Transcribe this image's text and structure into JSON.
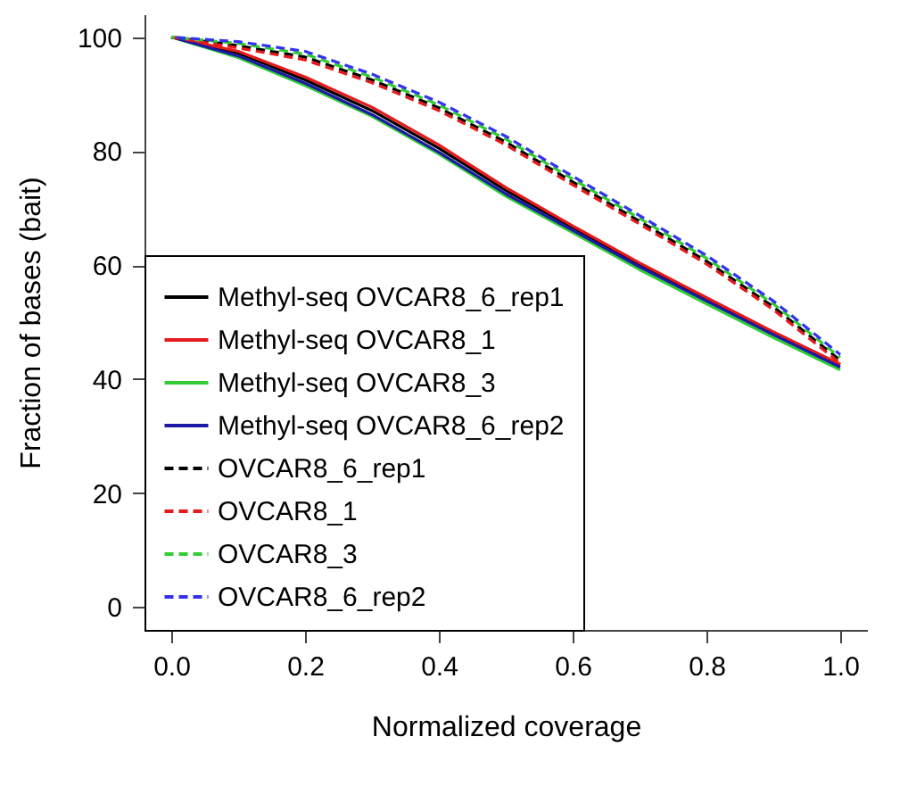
{
  "chart_data": {
    "type": "line",
    "xlabel": "Normalized coverage",
    "ylabel": "Fraction of bases (bait)",
    "x": [
      0,
      0.1,
      0.2,
      0.3,
      0.4,
      0.5,
      0.6,
      0.7,
      0.8,
      0.9,
      1.0
    ],
    "series": [
      {
        "name": "Methyl-seq OVCAR8_6_rep1",
        "color": "#000000",
        "line_style": "solid",
        "values": [
          100,
          97.2,
          92.5,
          87.1,
          80.5,
          73.1,
          66.6,
          60.1,
          54.1,
          48.2,
          42.5
        ]
      },
      {
        "name": "Methyl-seq OVCAR8_1",
        "color": "#e41a1c",
        "line_style": "solid",
        "values": [
          100,
          97.5,
          93,
          87.7,
          81.1,
          73.6,
          66.9,
          60.4,
          54.3,
          48.3,
          42.6
        ]
      },
      {
        "name": "Methyl-seq OVCAR8_3",
        "color": "#33cc33",
        "line_style": "solid",
        "values": [
          100,
          96.4,
          91.5,
          86.1,
          79.5,
          72.1,
          65.7,
          59.2,
          53.2,
          47.3,
          41.6
        ]
      },
      {
        "name": "Methyl-seq OVCAR8_6_rep2",
        "color": "#1a1aa6",
        "line_style": "solid",
        "values": [
          100,
          96.7,
          91.9,
          86.4,
          79.8,
          72.5,
          66.1,
          59.7,
          53.7,
          47.8,
          42.1
        ]
      },
      {
        "name": "OVCAR8_6_rep1",
        "color": "#000000",
        "line_style": "dashed",
        "values": [
          100,
          98.5,
          96.5,
          92.5,
          87.6,
          81.6,
          74.6,
          67.7,
          60.7,
          52.7,
          43.3
        ]
      },
      {
        "name": "OVCAR8_1",
        "color": "#e41a1c",
        "line_style": "dashed",
        "values": [
          100,
          98.1,
          96,
          92,
          87.1,
          81.1,
          74.1,
          67.2,
          60.2,
          52.2,
          42.8
        ]
      },
      {
        "name": "OVCAR8_3",
        "color": "#33cc33",
        "line_style": "dashed",
        "values": [
          100,
          98.9,
          97,
          93,
          88.1,
          82.1,
          75.1,
          68.2,
          61.2,
          53.2,
          43.8
        ]
      },
      {
        "name": "OVCAR8_6_rep2",
        "color": "#3333ee",
        "line_style": "dashed",
        "values": [
          100,
          99.2,
          97.5,
          93.5,
          88.6,
          82.6,
          75.6,
          68.7,
          61.7,
          53.7,
          44.3
        ]
      }
    ],
    "xlim": [
      -0.04,
      1.04
    ],
    "ylim": [
      -4,
      104
    ],
    "xticks": [
      {
        "value": 0,
        "label": "0.0"
      },
      {
        "value": 0.2,
        "label": "0.2"
      },
      {
        "value": 0.4,
        "label": "0.4"
      },
      {
        "value": 0.6,
        "label": "0.6"
      },
      {
        "value": 0.8,
        "label": "0.8"
      },
      {
        "value": 1,
        "label": "1.0"
      }
    ],
    "yticks": [
      0,
      20,
      40,
      60,
      80,
      100
    ],
    "grid": false,
    "legend": "bottom left"
  }
}
